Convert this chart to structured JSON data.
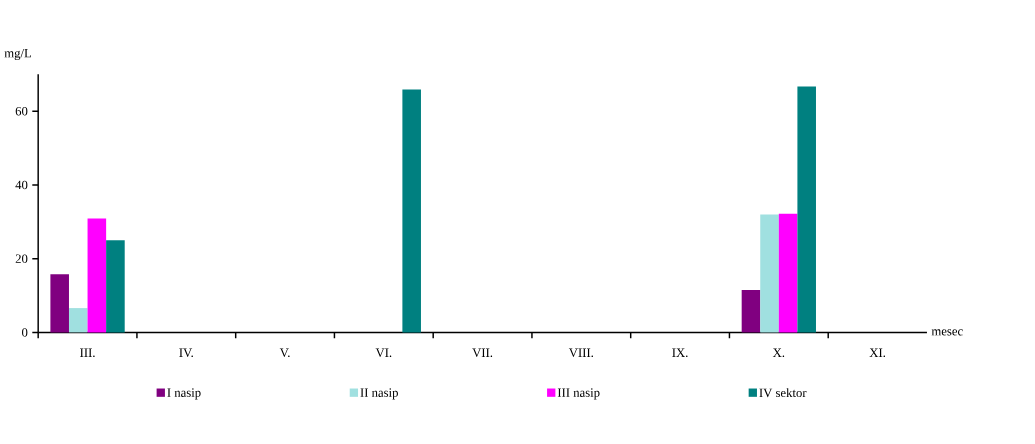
{
  "chart_data": {
    "type": "bar",
    "ylabel": "mg/L",
    "xlabel": "mesec",
    "categories": [
      "III.",
      "IV.",
      "V.",
      "VI.",
      "VII.",
      "VIII.",
      "IX.",
      "X.",
      "XI."
    ],
    "series": [
      {
        "name": "I nasip",
        "color": "#800080",
        "values": [
          15.8,
          null,
          null,
          null,
          null,
          null,
          null,
          11.5,
          null
        ]
      },
      {
        "name": "II nasip",
        "color": "#a0e0e0",
        "values": [
          6.6,
          null,
          null,
          null,
          null,
          null,
          null,
          32.0,
          null
        ]
      },
      {
        "name": "III nasip",
        "color": "#ff00ff",
        "values": [
          30.9,
          null,
          null,
          null,
          null,
          null,
          null,
          32.2,
          null
        ]
      },
      {
        "name": "IV sektor",
        "color": "#008080",
        "values": [
          25.0,
          null,
          null,
          65.9,
          null,
          null,
          null,
          66.7,
          null
        ]
      }
    ],
    "ylim": [
      0,
      70
    ],
    "yticks": [
      0,
      20,
      40,
      60
    ],
    "grid": false,
    "legend": "bottom"
  }
}
